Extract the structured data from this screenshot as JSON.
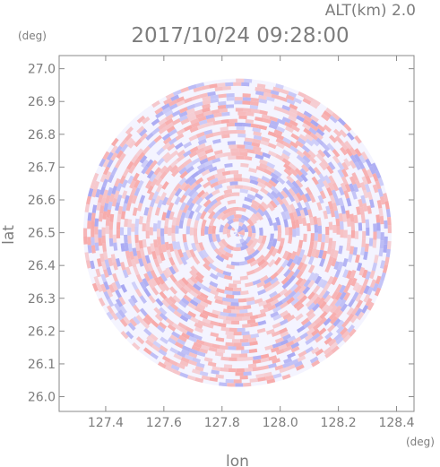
{
  "chart_data": {
    "type": "heatmap",
    "title": "2017/10/24 09:28:00",
    "subtitle": "ALT(km) 2.0",
    "xlabel": "lon",
    "ylabel": "lat",
    "x_unit": "(deg)",
    "y_unit": "(deg)",
    "xlim": [
      127.24,
      128.46
    ],
    "ylim": [
      25.955,
      27.04
    ],
    "x_ticks": [
      127.4,
      127.6,
      127.8,
      128.0,
      128.2,
      128.4
    ],
    "x_tick_labels": [
      "127.4",
      "127.6",
      "127.8",
      "128.0",
      "128.2",
      "128.4"
    ],
    "y_ticks": [
      26.0,
      26.1,
      26.2,
      26.3,
      26.4,
      26.5,
      26.6,
      26.7,
      26.8,
      26.9,
      27.0
    ],
    "y_tick_labels": [
      "26.0",
      "26.1",
      "26.2",
      "26.3",
      "26.4",
      "26.5",
      "26.6",
      "26.7",
      "26.8",
      "26.9",
      "27.0"
    ],
    "center": {
      "lon": 127.853,
      "lat": 26.5
    },
    "radius_deg_lat": 0.47,
    "colors": {
      "positive": "#f7a8a8",
      "negative": "#a8a8f2",
      "neutral": "#f4f4ff"
    },
    "grid": false
  }
}
